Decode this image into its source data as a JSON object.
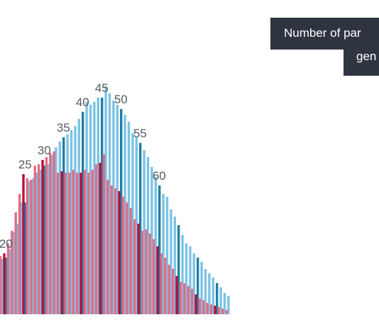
{
  "chart_data": {
    "type": "bar",
    "x_start": 18,
    "label_every": 5,
    "labels_shown": [
      20,
      25,
      30,
      35,
      40,
      45,
      50,
      55,
      60
    ],
    "series": [
      {
        "color": "#7cc3e4",
        "highlight_color": "#1f7fa8",
        "values": [
          56,
          78,
          80,
          92,
          116,
          128,
          158,
          158,
          188,
          192,
          200,
          204,
          210,
          212,
          225,
          236,
          244,
          250,
          254,
          260,
          266,
          276,
          286,
          300,
          296,
          300,
          306,
          306,
          322,
          312,
          302,
          296,
          290,
          282,
          272,
          256,
          250,
          242,
          232,
          222,
          208,
          194,
          182,
          170,
          166,
          148,
          138,
          126,
          112,
          100,
          96,
          86,
          80,
          74,
          64,
          58,
          52,
          44,
          38,
          30,
          26
        ]
      },
      {
        "color": "#e26d86",
        "highlight_color": "#b5123a",
        "values": [
          68,
          82,
          86,
          100,
          118,
          144,
          170,
          198,
          192,
          190,
          210,
          212,
          218,
          222,
          228,
          230,
          200,
          202,
          200,
          200,
          204,
          200,
          200,
          204,
          200,
          204,
          212,
          214,
          226,
          190,
          182,
          178,
          174,
          166,
          158,
          150,
          134,
          128,
          118,
          120,
          114,
          106,
          96,
          86,
          80,
          70,
          64,
          54,
          46,
          44,
          40,
          36,
          28,
          22,
          20,
          16,
          14,
          12,
          10,
          8,
          6
        ]
      }
    ],
    "ylim": [
      0,
      360
    ],
    "grid": false,
    "legend": "none"
  },
  "tooltip": {
    "line1": "Number of par",
    "line2": "gen"
  }
}
